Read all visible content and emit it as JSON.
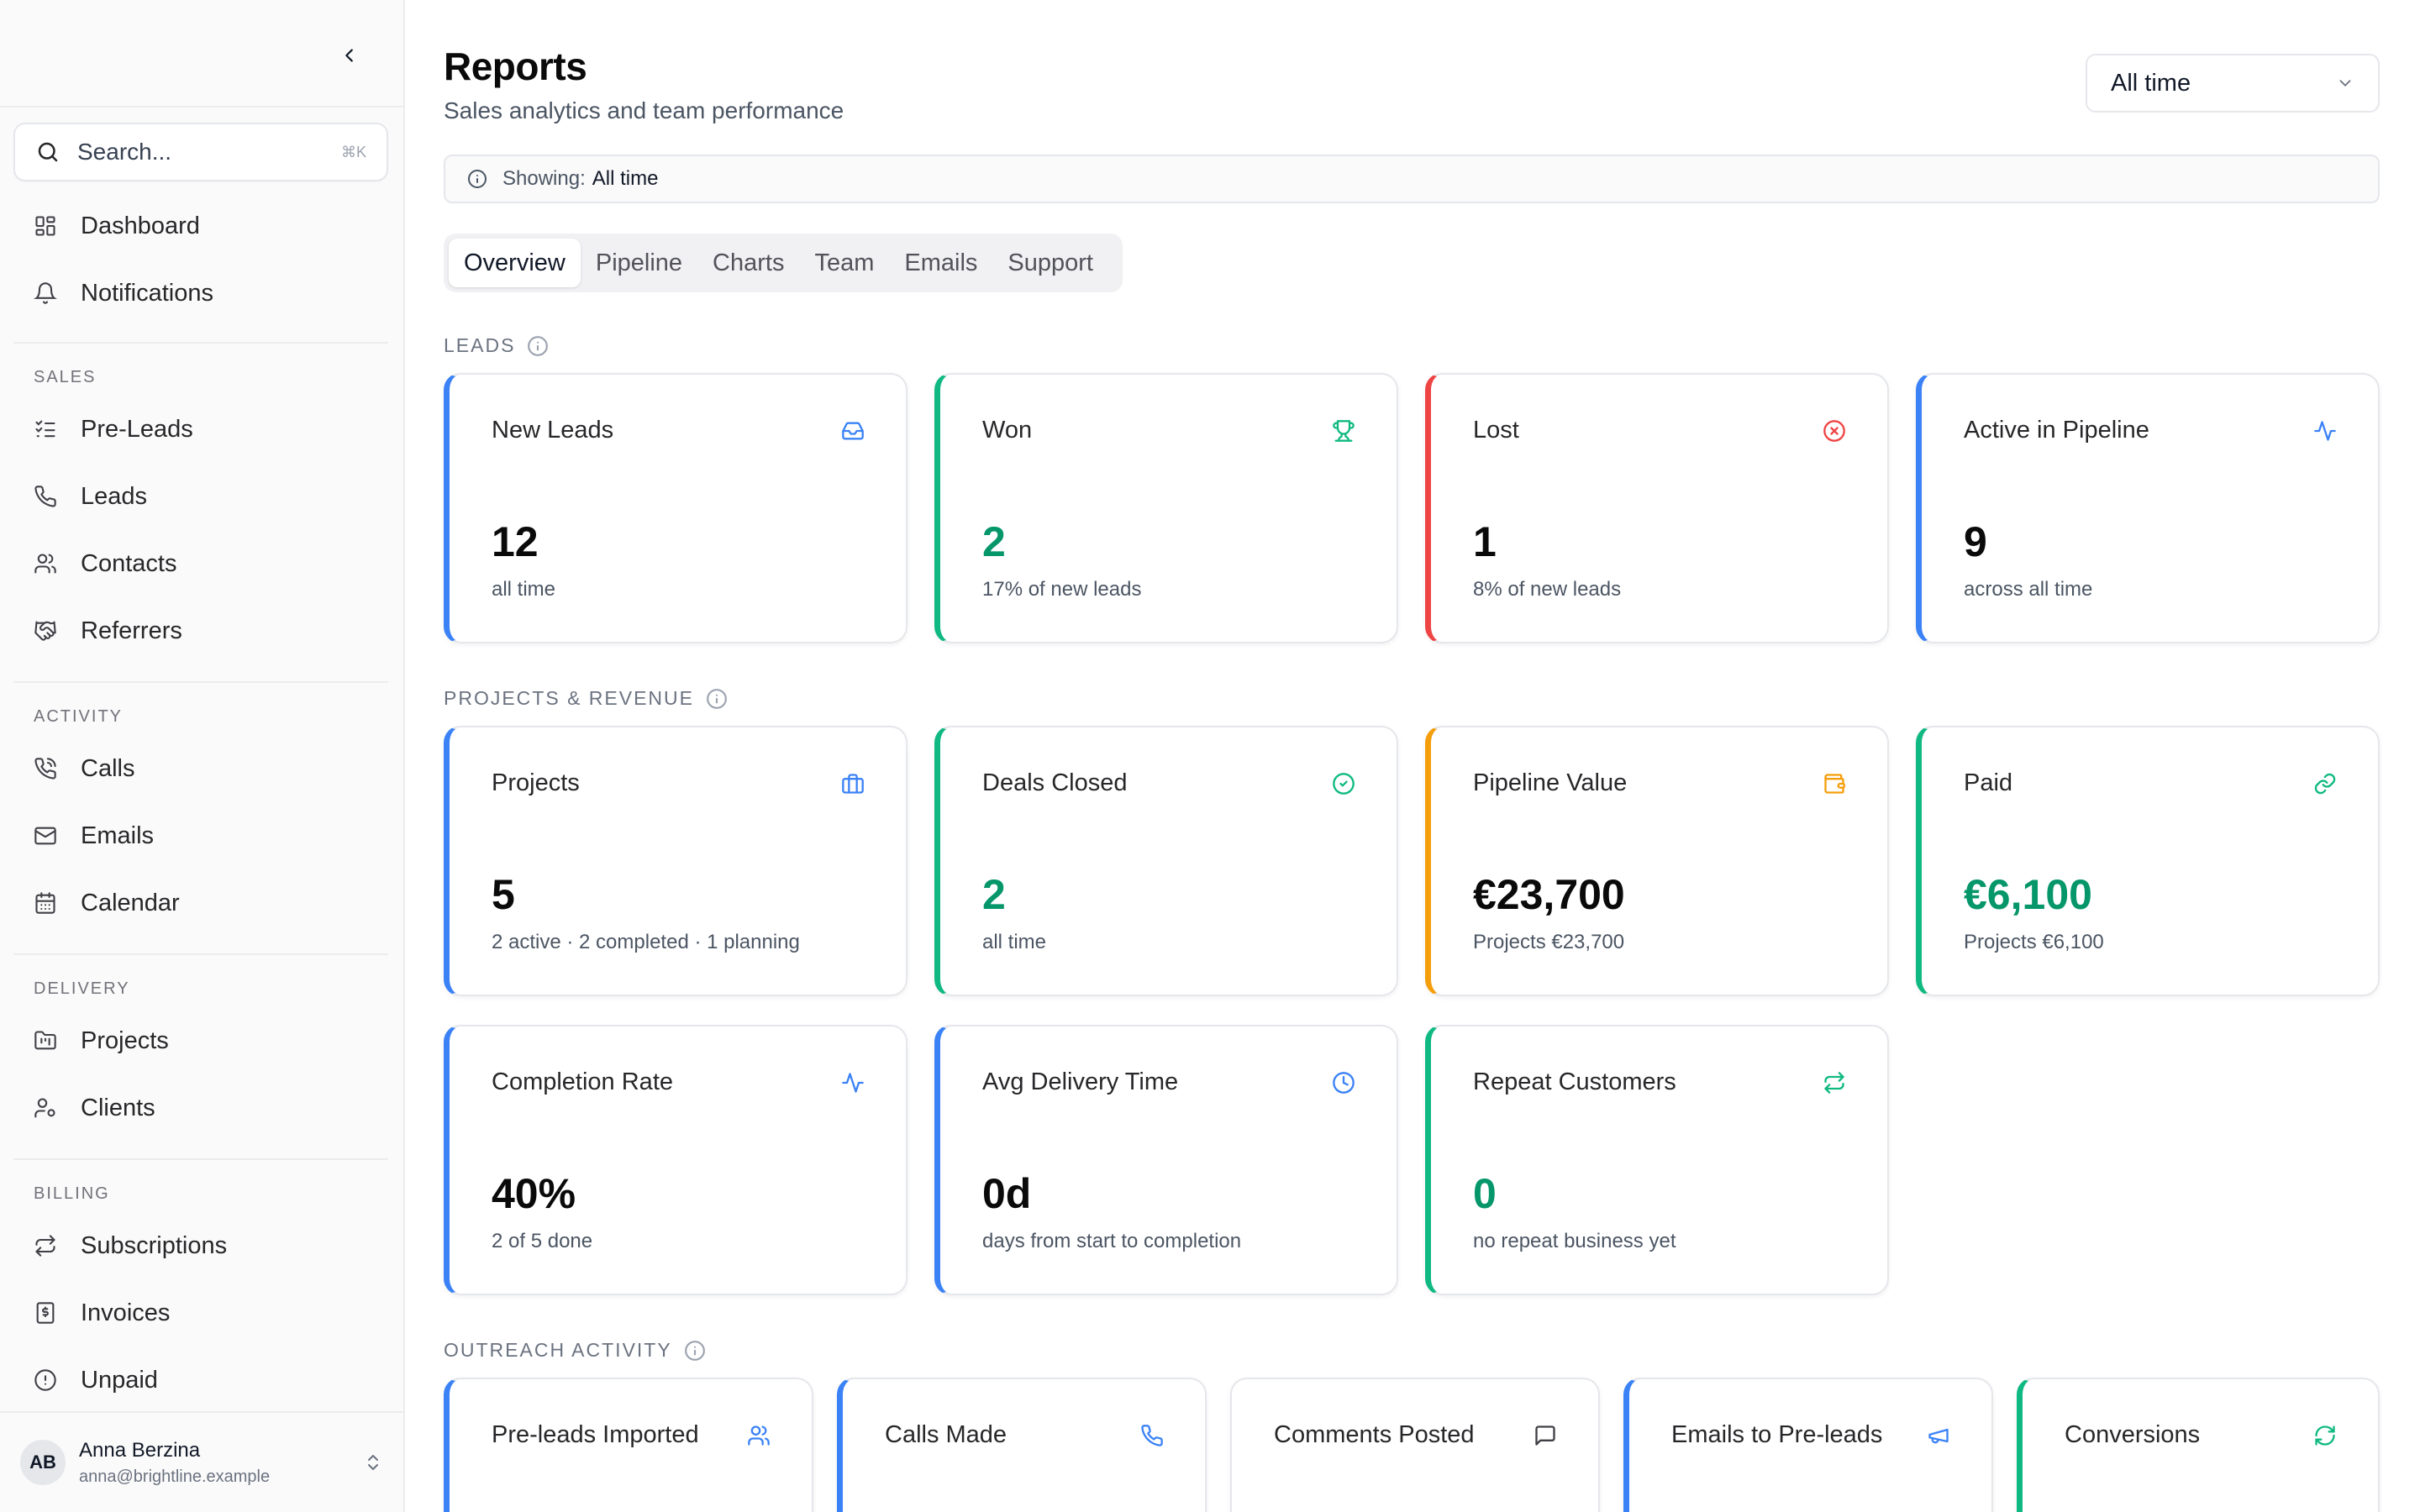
{
  "sidebar": {
    "search": {
      "placeholder": "Search...",
      "shortcut": "⌘K"
    },
    "items": [
      {
        "label": "Dashboard"
      },
      {
        "label": "Notifications"
      },
      {
        "label": "Pre-Leads"
      },
      {
        "label": "Leads"
      },
      {
        "label": "Contacts"
      },
      {
        "label": "Referrers"
      },
      {
        "label": "Calls"
      },
      {
        "label": "Emails"
      },
      {
        "label": "Calendar"
      },
      {
        "label": "Projects"
      },
      {
        "label": "Clients"
      },
      {
        "label": "Subscriptions"
      },
      {
        "label": "Invoices"
      },
      {
        "label": "Unpaid"
      }
    ],
    "groups": [
      "SALES",
      "ACTIVITY",
      "DELIVERY",
      "BILLING"
    ],
    "user": {
      "initials": "AB",
      "name": "Anna Berzina",
      "email": "anna@brightline.example"
    }
  },
  "header": {
    "title": "Reports",
    "subtitle": "Sales analytics and team performance",
    "range": "All time"
  },
  "showing": {
    "label": "Showing:",
    "value": "All time"
  },
  "tabs": [
    "Overview",
    "Pipeline",
    "Charts",
    "Team",
    "Emails",
    "Support"
  ],
  "sections": {
    "leads": {
      "label": "LEADS",
      "cards": [
        {
          "title": "New Leads",
          "value": "12",
          "sub": "all time",
          "icon": "inbox-icon"
        },
        {
          "title": "Won",
          "value": "2",
          "sub": "17% of new leads",
          "icon": "trophy-icon"
        },
        {
          "title": "Lost",
          "value": "1",
          "sub": "8% of new leads",
          "icon": "x-circle-icon"
        },
        {
          "title": "Active in Pipeline",
          "value": "9",
          "sub": "across all time",
          "icon": "activity-icon"
        }
      ]
    },
    "projects": {
      "label": "PROJECTS & REVENUE",
      "cards": [
        {
          "title": "Projects",
          "value": "5",
          "sub": "2 active · 2 completed · 1 planning",
          "icon": "briefcase-icon"
        },
        {
          "title": "Deals Closed",
          "value": "2",
          "sub": "all time",
          "icon": "check-circle-icon"
        },
        {
          "title": "Pipeline Value",
          "value": "€23,700",
          "sub": "Projects €23,700",
          "icon": "wallet-icon"
        },
        {
          "title": "Paid",
          "value": "€6,100",
          "sub": "Projects €6,100",
          "icon": "link-icon"
        },
        {
          "title": "Completion Rate",
          "value": "40%",
          "sub": "2 of 5 done",
          "icon": "activity-icon"
        },
        {
          "title": "Avg Delivery Time",
          "value": "0d",
          "sub": "days from start to completion",
          "icon": "clock-icon"
        },
        {
          "title": "Repeat Customers",
          "value": "0",
          "sub": "no repeat business yet",
          "icon": "repeat-icon"
        }
      ]
    },
    "outreach": {
      "label": "OUTREACH ACTIVITY",
      "cards": [
        {
          "title": "Pre-leads Imported",
          "icon": "users-icon"
        },
        {
          "title": "Calls Made",
          "icon": "phone-icon"
        },
        {
          "title": "Comments Posted",
          "icon": "message-icon"
        },
        {
          "title": "Emails to Pre-leads",
          "icon": "megaphone-icon"
        },
        {
          "title": "Conversions",
          "icon": "refresh-icon"
        }
      ]
    }
  },
  "colors": {
    "blue": "#3b82f6",
    "green": "#10b981",
    "red": "#ef4444",
    "orange": "#f59e0b",
    "value_green": "#059669"
  }
}
